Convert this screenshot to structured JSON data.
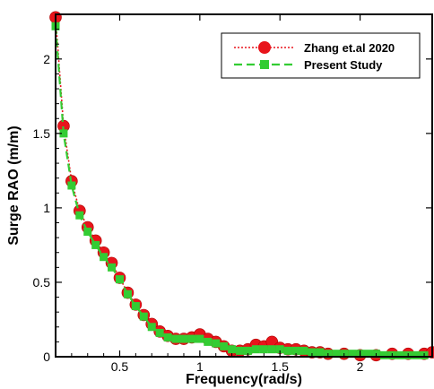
{
  "chart_data": {
    "type": "line",
    "xlabel": "Frequency(rad/s)",
    "ylabel": "Surge RAO (m/m)",
    "xlim": [
      0.1,
      2.45
    ],
    "ylim": [
      0,
      2.3
    ],
    "xticks": [
      0.5,
      1,
      1.5,
      2
    ],
    "xtick_labels": [
      "0.5",
      "1",
      "1.5",
      "2"
    ],
    "yticks": [
      0,
      0.5,
      1,
      1.5,
      2
    ],
    "ytick_labels": [
      "0",
      "0.5",
      "1",
      "1.5",
      "2"
    ],
    "legend_position": "top-right",
    "series": [
      {
        "name": "Zhang et.al 2020",
        "color": "#e8141b",
        "line_style": "dotted",
        "marker": "circle",
        "x": [
          0.1,
          0.15,
          0.2,
          0.25,
          0.3,
          0.35,
          0.4,
          0.45,
          0.5,
          0.55,
          0.6,
          0.65,
          0.7,
          0.75,
          0.8,
          0.85,
          0.9,
          0.95,
          1.0,
          1.05,
          1.1,
          1.15,
          1.2,
          1.25,
          1.3,
          1.35,
          1.4,
          1.45,
          1.5,
          1.55,
          1.6,
          1.65,
          1.7,
          1.75,
          1.8,
          1.9,
          2.0,
          2.1,
          2.2,
          2.3,
          2.4,
          2.45
        ],
        "y": [
          2.28,
          1.55,
          1.18,
          0.98,
          0.87,
          0.78,
          0.7,
          0.63,
          0.53,
          0.43,
          0.35,
          0.28,
          0.22,
          0.17,
          0.14,
          0.12,
          0.12,
          0.13,
          0.15,
          0.12,
          0.1,
          0.07,
          0.04,
          0.04,
          0.05,
          0.08,
          0.07,
          0.1,
          0.06,
          0.05,
          0.05,
          0.04,
          0.03,
          0.03,
          0.02,
          0.02,
          0.01,
          0.01,
          0.02,
          0.02,
          0.02,
          0.03
        ]
      },
      {
        "name": "Present Study",
        "color": "#33cc33",
        "line_style": "dashed",
        "marker": "square",
        "x": [
          0.1,
          0.15,
          0.2,
          0.25,
          0.3,
          0.35,
          0.4,
          0.45,
          0.5,
          0.55,
          0.6,
          0.65,
          0.7,
          0.75,
          0.8,
          0.85,
          0.9,
          0.95,
          1.0,
          1.05,
          1.1,
          1.15,
          1.2,
          1.25,
          1.3,
          1.35,
          1.4,
          1.45,
          1.5,
          1.55,
          1.6,
          1.65,
          1.7,
          1.75,
          1.8,
          1.85,
          1.9,
          1.95,
          2.0,
          2.05,
          2.1,
          2.15,
          2.2,
          2.25,
          2.3,
          2.35,
          2.4
        ],
        "y": [
          2.22,
          1.5,
          1.15,
          0.95,
          0.84,
          0.75,
          0.67,
          0.6,
          0.52,
          0.42,
          0.34,
          0.27,
          0.2,
          0.16,
          0.13,
          0.12,
          0.12,
          0.12,
          0.12,
          0.1,
          0.09,
          0.07,
          0.05,
          0.04,
          0.04,
          0.05,
          0.05,
          0.05,
          0.05,
          0.04,
          0.04,
          0.04,
          0.03,
          0.03,
          0.02,
          0.02,
          0.02,
          0.02,
          0.02,
          0.02,
          0.02,
          0.01,
          0.01,
          0.01,
          0.01,
          0.01,
          0.01
        ]
      }
    ]
  }
}
